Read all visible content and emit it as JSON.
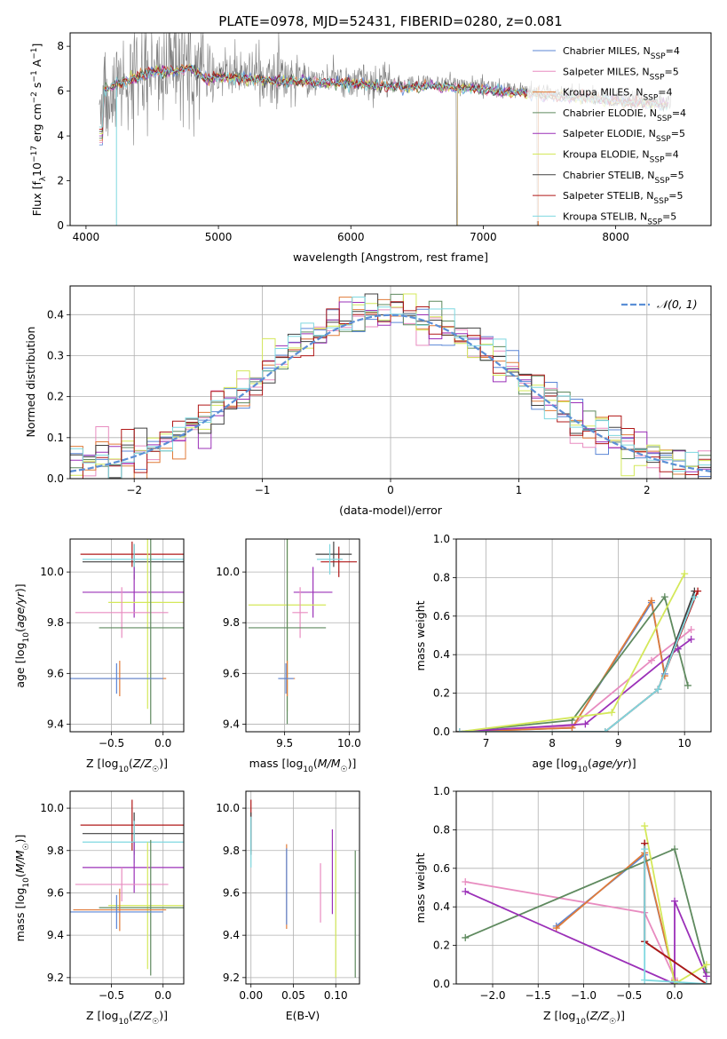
{
  "chart_data": [
    {
      "id": "spectrum",
      "type": "line",
      "title": "PLATE=0978, MJD=52431, FIBERID=0280, z=0.081",
      "xlabel": "wavelength [Angstrom, rest frame]",
      "ylabel": "Flux [f_λ 10^-17 erg cm^-2 s^-1 A^-1]",
      "xlim": [
        3880,
        8720
      ],
      "ylim": [
        0,
        8.6
      ],
      "xticks": [
        4000,
        5000,
        6000,
        7000,
        8000
      ],
      "yticks": [
        0,
        2,
        4,
        6,
        8
      ],
      "grid": false,
      "legend_position": "right",
      "series": [
        {
          "name": "Chabrier MILES, N_SSP=4",
          "color": "#5b86d6"
        },
        {
          "name": "Salpeter MILES, N_SSP=5",
          "color": "#e88cc0"
        },
        {
          "name": "Kroupa MILES, N_SSP=4",
          "color": "#e07b39"
        },
        {
          "name": "Chabrier ELODIE, N_SSP=4",
          "color": "#5f8a5f"
        },
        {
          "name": "Salpeter ELODIE, N_SSP=5",
          "color": "#9b30b8"
        },
        {
          "name": "Kroupa ELODIE, N_SSP=4",
          "color": "#d4e85a"
        },
        {
          "name": "Chabrier STELIB, N_SSP=5",
          "color": "#404040"
        },
        {
          "name": "Salpeter STELIB, N_SSP=5",
          "color": "#b01818"
        },
        {
          "name": "Kroupa STELIB, N_SSP=5",
          "color": "#7fd8e0"
        }
      ],
      "model_curve": {
        "x": [
          4100,
          4200,
          4300,
          4400,
          4500,
          4600,
          4700,
          4800,
          4900,
          5000,
          5200,
          5400,
          5600,
          5800,
          6000,
          6200,
          6400,
          6600,
          6800,
          7000,
          7200,
          7400,
          7600,
          7800,
          8000,
          8200,
          8400
        ],
        "y": [
          6.1,
          6.4,
          6.6,
          6.8,
          7.0,
          7.0,
          7.1,
          7.2,
          6.7,
          6.8,
          6.7,
          6.6,
          6.6,
          6.5,
          6.5,
          6.4,
          6.3,
          6.4,
          6.3,
          6.2,
          6.1,
          6.0,
          5.9,
          5.8,
          5.7,
          5.6,
          5.5
        ]
      },
      "data_color": "#808080"
    },
    {
      "id": "residuals",
      "type": "line",
      "xlabel": "(data-model)/error",
      "ylabel": "Normed distribution",
      "xlim": [
        -2.5,
        2.5
      ],
      "ylim": [
        0,
        0.47
      ],
      "xticks": [
        -2,
        -1,
        0,
        1,
        2
      ],
      "yticks": [
        0.0,
        0.1,
        0.2,
        0.3,
        0.4
      ],
      "grid": true,
      "legend_position": "top-right",
      "legend": [
        "𝒩(0, 1)"
      ],
      "gauss_color": "#5b8fd6"
    },
    {
      "id": "age_vs_Z",
      "type": "scatter",
      "xlabel": "Z [log₁₀(Z/Z☉)]",
      "ylabel": "age  [log₁₀(age/yr)]",
      "xlim": [
        -0.9,
        0.2
      ],
      "ylim": [
        9.37,
        10.13
      ],
      "xticks": [
        -0.5,
        0.0
      ],
      "yticks": [
        9.4,
        9.6,
        9.8,
        10.0
      ],
      "grid": true,
      "points": [
        {
          "x": -0.28,
          "y": 10.04,
          "xerr": 0.5,
          "yerr": 0.07,
          "color": "#404040"
        },
        {
          "x": -0.3,
          "y": 10.07,
          "xerr": 0.5,
          "yerr": 0.05,
          "color": "#b01818"
        },
        {
          "x": -0.28,
          "y": 10.05,
          "xerr": 0.5,
          "yerr": 0.06,
          "color": "#7fd8e0"
        },
        {
          "x": -0.28,
          "y": 9.92,
          "xerr": 0.5,
          "yerr": 0.1,
          "color": "#9b30b8"
        },
        {
          "x": -0.15,
          "y": 9.88,
          "xerr": 0.38,
          "yerr": 0.42,
          "color": "#d4e85a"
        },
        {
          "x": -0.4,
          "y": 9.84,
          "xerr": 0.45,
          "yerr": 0.1,
          "color": "#e88cc0"
        },
        {
          "x": -0.12,
          "y": 9.78,
          "xerr": 0.5,
          "yerr": 0.38,
          "color": "#5f8a5f"
        },
        {
          "x": -0.42,
          "y": 9.58,
          "xerr": 0.45,
          "yerr": 0.07,
          "color": "#e07b39"
        },
        {
          "x": -0.45,
          "y": 9.58,
          "xerr": 0.45,
          "yerr": 0.06,
          "color": "#5b86d6"
        }
      ]
    },
    {
      "id": "age_vs_mass",
      "type": "scatter",
      "xlabel": "mass [log₁₀(M/M☉)]",
      "ylabel": "",
      "xlim": [
        9.2,
        10.08
      ],
      "ylim": [
        9.37,
        10.13
      ],
      "xticks": [
        9.5,
        10.0
      ],
      "yticks": [
        9.4,
        9.6,
        9.8,
        10.0
      ],
      "grid": true,
      "points": [
        {
          "x": 9.88,
          "y": 10.07,
          "xerr": 0.14,
          "yerr": 0.05,
          "color": "#404040"
        },
        {
          "x": 9.92,
          "y": 10.04,
          "xerr": 0.14,
          "yerr": 0.06,
          "color": "#b01818"
        },
        {
          "x": 9.85,
          "y": 10.05,
          "xerr": 0.1,
          "yerr": 0.06,
          "color": "#7fd8e0"
        },
        {
          "x": 9.72,
          "y": 9.92,
          "xerr": 0.15,
          "yerr": 0.1,
          "color": "#9b30b8"
        },
        {
          "x": 9.52,
          "y": 9.87,
          "xerr": 0.3,
          "yerr": 0.42,
          "color": "#d4e85a"
        },
        {
          "x": 9.62,
          "y": 9.84,
          "xerr": 0.06,
          "yerr": 0.1,
          "color": "#e88cc0"
        },
        {
          "x": 9.52,
          "y": 9.78,
          "xerr": 0.3,
          "yerr": 0.38,
          "color": "#5f8a5f"
        },
        {
          "x": 9.52,
          "y": 9.58,
          "xerr": 0.06,
          "yerr": 0.07,
          "color": "#e07b39"
        },
        {
          "x": 9.51,
          "y": 9.58,
          "xerr": 0.06,
          "yerr": 0.06,
          "color": "#5b86d6"
        }
      ]
    },
    {
      "id": "mass_weight_vs_age",
      "type": "line",
      "xlabel": "age  [log₁₀(age/yr)]",
      "ylabel": "mass weight",
      "xlim": [
        6.55,
        10.4
      ],
      "ylim": [
        0,
        1.0
      ],
      "xticks": [
        7,
        8,
        9,
        10
      ],
      "yticks": [
        0.0,
        0.2,
        0.4,
        0.6,
        0.8,
        1.0
      ],
      "grid": true,
      "series": [
        {
          "name": "Chabrier MILES",
          "color": "#5b86d6",
          "x": [
            6.6,
            8.3,
            9.5,
            9.7
          ],
          "y": [
            0.0,
            0.02,
            0.67,
            0.3
          ]
        },
        {
          "name": "Salpeter MILES",
          "color": "#e88cc0",
          "x": [
            6.6,
            8.3,
            9.5,
            10.1
          ],
          "y": [
            0.0,
            0.03,
            0.37,
            0.53
          ]
        },
        {
          "name": "Kroupa MILES",
          "color": "#e07b39",
          "x": [
            6.6,
            8.3,
            9.5,
            9.7
          ],
          "y": [
            0.0,
            0.02,
            0.68,
            0.29
          ]
        },
        {
          "name": "Chabrier ELODIE",
          "color": "#5f8a5f",
          "x": [
            6.6,
            8.3,
            9.7,
            10.05
          ],
          "y": [
            0.0,
            0.06,
            0.7,
            0.24
          ]
        },
        {
          "name": "Salpeter ELODIE",
          "color": "#9b30b8",
          "x": [
            6.6,
            8.5,
            9.9,
            10.1
          ],
          "y": [
            0.0,
            0.04,
            0.43,
            0.48
          ]
        },
        {
          "name": "Kroupa ELODIE",
          "color": "#d4e85a",
          "x": [
            6.6,
            8.9,
            10.0
          ],
          "y": [
            0.0,
            0.1,
            0.82
          ]
        },
        {
          "name": "Chabrier STELIB",
          "color": "#404040",
          "x": [
            6.6,
            8.8,
            9.6,
            10.15
          ],
          "y": [
            0.0,
            0.0,
            0.22,
            0.73
          ]
        },
        {
          "name": "Salpeter STELIB",
          "color": "#b01818",
          "x": [
            6.6,
            8.8,
            9.6,
            10.2
          ],
          "y": [
            0.0,
            0.0,
            0.22,
            0.73
          ]
        },
        {
          "name": "Kroupa STELIB",
          "color": "#7fd8e0",
          "x": [
            6.6,
            8.8,
            9.6,
            10.15
          ],
          "y": [
            0.0,
            0.0,
            0.22,
            0.7
          ]
        }
      ]
    },
    {
      "id": "mass_vs_Z",
      "type": "scatter",
      "xlabel": "Z [log₁₀(Z/Z☉)]",
      "ylabel": "mass [log₁₀(M/M☉)]",
      "xlim": [
        -0.9,
        0.2
      ],
      "ylim": [
        9.17,
        10.08
      ],
      "xticks": [
        -0.5,
        0.0
      ],
      "yticks": [
        9.2,
        9.4,
        9.6,
        9.8,
        10.0
      ],
      "grid": true,
      "points": [
        {
          "x": -0.3,
          "y": 9.92,
          "xerr": 0.5,
          "yerr": 0.12,
          "color": "#b01818"
        },
        {
          "x": -0.28,
          "y": 9.88,
          "xerr": 0.5,
          "yerr": 0.1,
          "color": "#404040"
        },
        {
          "x": -0.28,
          "y": 9.84,
          "xerr": 0.5,
          "yerr": 0.1,
          "color": "#7fd8e0"
        },
        {
          "x": -0.28,
          "y": 9.72,
          "xerr": 0.5,
          "yerr": 0.12,
          "color": "#9b30b8"
        },
        {
          "x": -0.4,
          "y": 9.64,
          "xerr": 0.45,
          "yerr": 0.08,
          "color": "#e88cc0"
        },
        {
          "x": -0.15,
          "y": 9.54,
          "xerr": 0.38,
          "yerr": 0.3,
          "color": "#d4e85a"
        },
        {
          "x": -0.12,
          "y": 9.53,
          "xerr": 0.5,
          "yerr": 0.32,
          "color": "#5f8a5f"
        },
        {
          "x": -0.42,
          "y": 9.52,
          "xerr": 0.45,
          "yerr": 0.1,
          "color": "#e07b39"
        },
        {
          "x": -0.45,
          "y": 9.51,
          "xerr": 0.45,
          "yerr": 0.08,
          "color": "#5b86d6"
        }
      ]
    },
    {
      "id": "mass_vs_ebv",
      "type": "scatter",
      "xlabel": "E(B-V)",
      "ylabel": "",
      "xlim": [
        -0.006,
        0.128
      ],
      "ylim": [
        9.17,
        10.08
      ],
      "xticks": [
        0.0,
        0.05,
        0.1
      ],
      "yticks": [
        9.2,
        9.4,
        9.6,
        9.8,
        10.0
      ],
      "grid": true,
      "points": [
        {
          "x": 0.0,
          "y": 9.92,
          "yerr": 0.12,
          "color": "#b01818"
        },
        {
          "x": 0.0,
          "y": 9.88,
          "yerr": 0.1,
          "color": "#404040"
        },
        {
          "x": 0.0,
          "y": 9.84,
          "yerr": 0.12,
          "color": "#7fd8e0"
        },
        {
          "x": 0.042,
          "y": 9.63,
          "yerr": 0.2,
          "color": "#e07b39"
        },
        {
          "x": 0.042,
          "y": 9.63,
          "yerr": 0.18,
          "color": "#5b86d6"
        },
        {
          "x": 0.082,
          "y": 9.6,
          "yerr": 0.14,
          "color": "#e88cc0"
        },
        {
          "x": 0.096,
          "y": 9.7,
          "yerr": 0.2,
          "color": "#9b30b8"
        },
        {
          "x": 0.1,
          "y": 9.5,
          "yerr": 0.3,
          "color": "#d4e85a"
        },
        {
          "x": 0.123,
          "y": 9.5,
          "yerr": 0.3,
          "color": "#5f8a5f"
        }
      ]
    },
    {
      "id": "mass_weight_vs_Z",
      "type": "line",
      "xlabel": "Z [log₁₀(Z/Z☉)]",
      "ylabel": "mass weight",
      "xlim": [
        -2.4,
        0.4
      ],
      "ylim": [
        0,
        1.0
      ],
      "xticks": [
        -2.0,
        -1.5,
        -1.0,
        -0.5,
        0.0
      ],
      "yticks": [
        0.0,
        0.2,
        0.4,
        0.6,
        0.8,
        1.0
      ],
      "grid": true,
      "series": [
        {
          "name": "Chabrier MILES",
          "color": "#5b86d6",
          "x": [
            -1.3,
            -0.33,
            0.0
          ],
          "y": [
            0.3,
            0.67,
            0.02
          ]
        },
        {
          "name": "Salpeter MILES",
          "color": "#e88cc0",
          "x": [
            -2.3,
            -0.33,
            0.0
          ],
          "y": [
            0.53,
            0.37,
            0.03
          ]
        },
        {
          "name": "Kroupa MILES",
          "color": "#e07b39",
          "x": [
            -1.3,
            -0.33,
            0.0
          ],
          "y": [
            0.29,
            0.68,
            0.02
          ]
        },
        {
          "name": "Chabrier ELODIE",
          "color": "#5f8a5f",
          "x": [
            -2.3,
            0.0,
            0.35
          ],
          "y": [
            0.24,
            0.7,
            0.06
          ]
        },
        {
          "name": "Salpeter ELODIE",
          "color": "#9b30b8",
          "x": [
            -2.3,
            0.0,
            0.0,
            0.35
          ],
          "y": [
            0.48,
            0.0,
            0.43,
            0.04
          ]
        },
        {
          "name": "Kroupa ELODIE",
          "color": "#d4e85a",
          "x": [
            -0.33,
            0.0,
            0.35
          ],
          "y": [
            0.82,
            0.0,
            0.1
          ]
        },
        {
          "name": "Chabrier STELIB",
          "color": "#404040",
          "x": [
            -0.33,
            -0.33,
            0.35
          ],
          "y": [
            0.73,
            0.22,
            0.0
          ]
        },
        {
          "name": "Salpeter STELIB",
          "color": "#b01818",
          "x": [
            -0.33,
            -0.33,
            0.35
          ],
          "y": [
            0.73,
            0.22,
            0.0
          ]
        },
        {
          "name": "Kroupa STELIB",
          "color": "#7fd8e0",
          "x": [
            -0.33,
            -0.33,
            0.35
          ],
          "y": [
            0.7,
            0.02,
            0.0
          ]
        }
      ]
    }
  ]
}
